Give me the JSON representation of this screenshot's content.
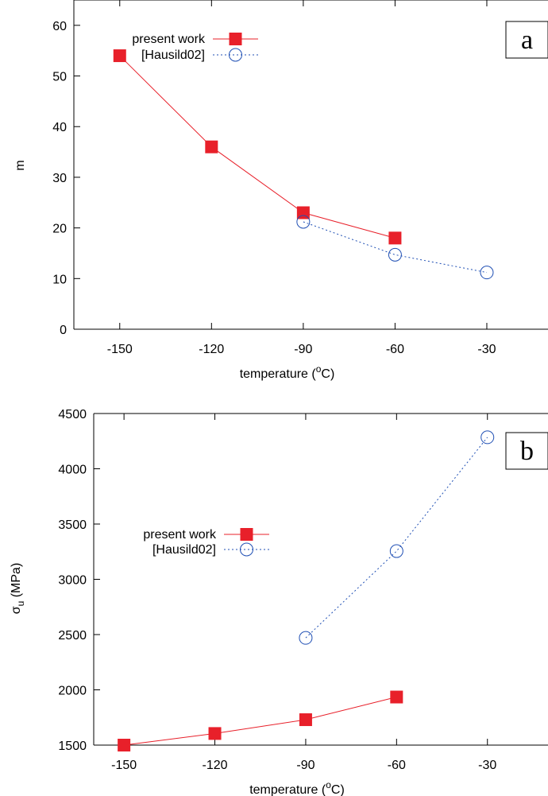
{
  "chart_data": [
    {
      "type": "line",
      "panel_label": "a",
      "xlabel": "temperature (",
      "xlabel_sup": "o",
      "xlabel_end": "C)",
      "ylabel": "m",
      "xlim": [
        -165,
        -10
      ],
      "ylim": [
        0,
        65
      ],
      "xticks": [
        -150,
        -120,
        -90,
        -60,
        -30
      ],
      "yticks": [
        0,
        10,
        20,
        30,
        40,
        50,
        60
      ],
      "legend_position": "top-left",
      "series": [
        {
          "name": "present work",
          "x": [
            -150,
            -120,
            -90,
            -60
          ],
          "y": [
            54,
            36,
            23,
            18
          ],
          "color": "#e8202a",
          "marker": "square",
          "style": "solid"
        },
        {
          "name": "[Hausild02]",
          "x": [
            -90,
            -60,
            -30
          ],
          "y": [
            21.2,
            14.7,
            11.2
          ],
          "color": "#1f4fb4",
          "marker": "open-circle",
          "style": "dotted"
        }
      ]
    },
    {
      "type": "line",
      "panel_label": "b",
      "xlabel": "temperature (",
      "xlabel_sup": "o",
      "xlabel_end": "C)",
      "ylabel": "σ",
      "ylabel_sub": "u",
      "ylabel_end": " (MPa)",
      "xlim": [
        -160,
        -10
      ],
      "ylim": [
        1500,
        4500
      ],
      "xticks": [
        -150,
        -120,
        -90,
        -60,
        -30
      ],
      "yticks": [
        1500,
        2000,
        2500,
        3000,
        3500,
        4000,
        4500
      ],
      "legend_position": "center-left",
      "series": [
        {
          "name": "present work",
          "x": [
            -150,
            -120,
            -90,
            -60
          ],
          "y": [
            1500,
            1605,
            1730,
            1935
          ],
          "color": "#e8202a",
          "marker": "square",
          "style": "solid"
        },
        {
          "name": "[Hausild02]",
          "x": [
            -90,
            -60,
            -30
          ],
          "y": [
            2470,
            3255,
            4285
          ],
          "color": "#1f4fb4",
          "marker": "open-circle",
          "style": "dotted"
        }
      ]
    }
  ]
}
